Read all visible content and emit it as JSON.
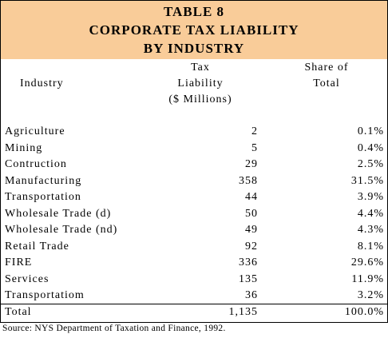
{
  "title": {
    "line1": "TABLE 8",
    "line2": "CORPORATE TAX LIABILITY",
    "line3": "BY INDUSTRY"
  },
  "headers": {
    "industry": "Industry",
    "tax_line1": "Tax",
    "tax_line2": "Liability",
    "tax_line3": "($ Millions)",
    "share_line1": "Share of",
    "share_line2": "Total"
  },
  "rows": [
    {
      "industry": "Agriculture",
      "tax": "2",
      "share": "0.1%"
    },
    {
      "industry": "Mining",
      "tax": "5",
      "share": "0.4%"
    },
    {
      "industry": "Contruction",
      "tax": "29",
      "share": "2.5%"
    },
    {
      "industry": "Manufacturing",
      "tax": "358",
      "share": "31.5%"
    },
    {
      "industry": "Transportation",
      "tax": "44",
      "share": "3.9%"
    },
    {
      "industry": "Wholesale Trade (d)",
      "tax": "50",
      "share": "4.4%"
    },
    {
      "industry": "Wholesale Trade (nd)",
      "tax": "49",
      "share": "4.3%"
    },
    {
      "industry": "Retail Trade",
      "tax": "92",
      "share": "8.1%"
    },
    {
      "industry": "FIRE",
      "tax": "336",
      "share": "29.6%"
    },
    {
      "industry": "Services",
      "tax": "135",
      "share": "11.9%"
    },
    {
      "industry": "Transportatiom",
      "tax": "36",
      "share": "3.2%"
    },
    {
      "industry": "Total",
      "tax": "1,135",
      "share": "100.0%"
    }
  ],
  "source": "Source: NYS Department of Taxation and Finance, 1992.",
  "colors": {
    "title_band": "#f9cc99",
    "border": "#000000"
  }
}
